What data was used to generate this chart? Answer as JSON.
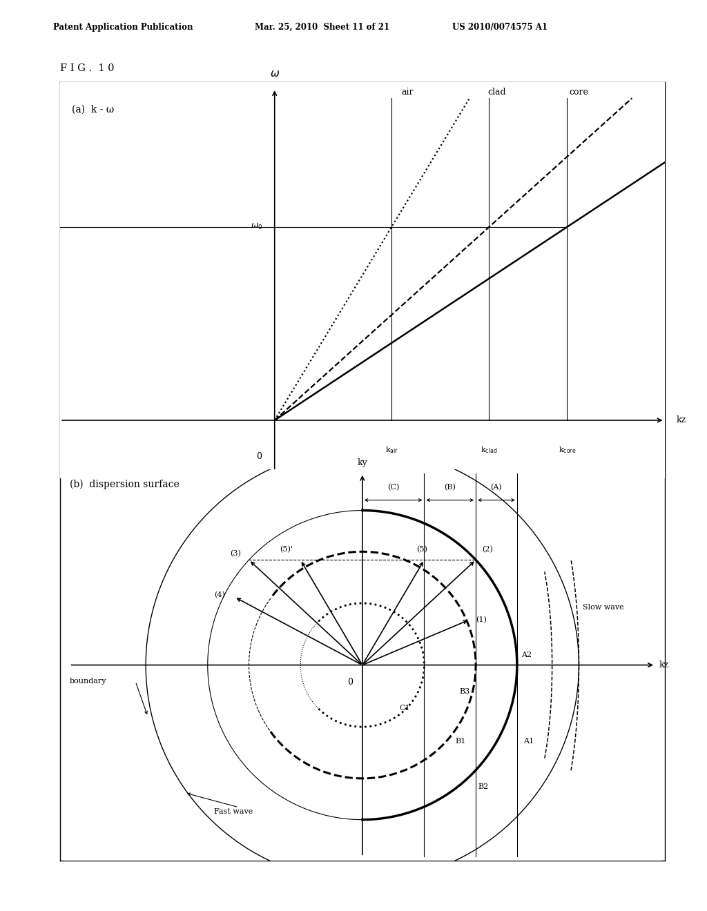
{
  "header_left": "Patent Application Publication",
  "header_mid": "Mar. 25, 2010  Sheet 11 of 21",
  "header_right": "US 2010/0074575 A1",
  "fig_label": "F I G .  1 0",
  "fig_a_label": "(a)  k - ω",
  "fig_b_label": "(b)  dispersion surface",
  "background": "#ffffff",
  "k_air": 0.3,
  "k_clad": 0.55,
  "k_core": 0.75,
  "omega0": 0.6,
  "r_outer": 1.05,
  "r_core": 0.75,
  "r_clad": 0.55,
  "r_air": 0.3
}
